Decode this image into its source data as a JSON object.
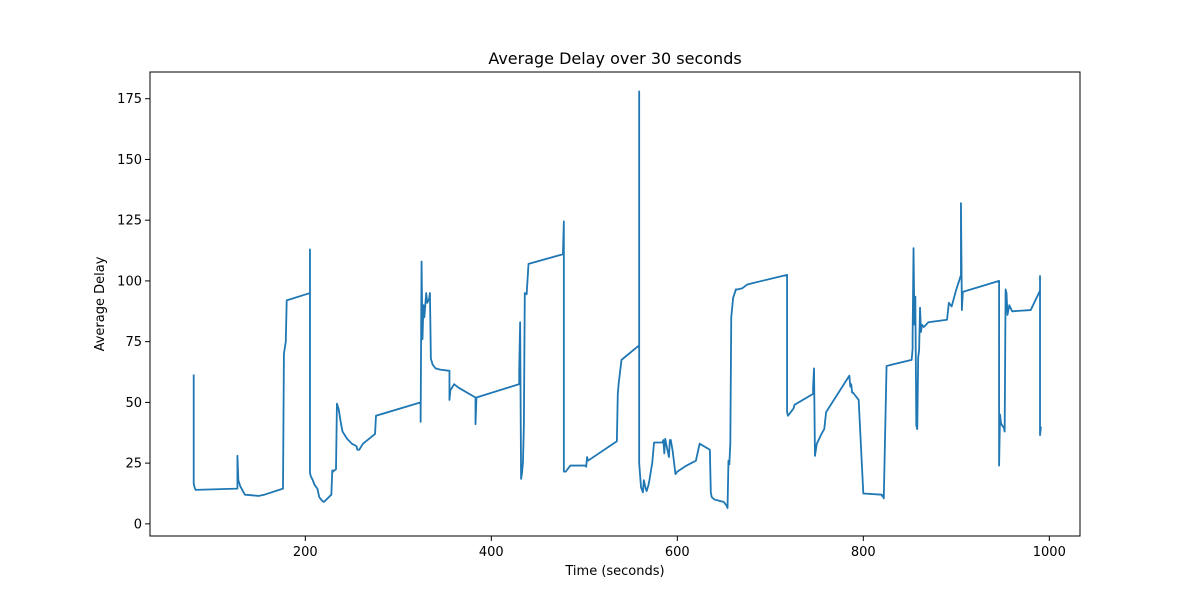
{
  "chart_data": {
    "type": "line",
    "title": "Average Delay over 30 seconds",
    "xlabel": "Time (seconds)",
    "ylabel": "Average Delay",
    "xlim": [
      33,
      1033
    ],
    "ylim": [
      -5,
      186
    ],
    "xticks": [
      200,
      400,
      600,
      800,
      1000
    ],
    "yticks": [
      0,
      25,
      50,
      75,
      100,
      125,
      150,
      175
    ],
    "grid": false,
    "legend": "none",
    "series": [
      {
        "color": "#1f77b4",
        "x": [
          80,
          80,
          81,
          82,
          127,
          127,
          128,
          130,
          135,
          150,
          156,
          176,
          177,
          179,
          180,
          205,
          205,
          205,
          206,
          208,
          210,
          213,
          215,
          218,
          220,
          228,
          229,
          230,
          231,
          233,
          234,
          236,
          238,
          240,
          245,
          250,
          255,
          256,
          258,
          262,
          275,
          276,
          324,
          324,
          325,
          326,
          327,
          328,
          330,
          331,
          333,
          334,
          335,
          337,
          340,
          345,
          355,
          355,
          356,
          360,
          365,
          383,
          383,
          384,
          430,
          430,
          431,
          432,
          433,
          434,
          435,
          436,
          438,
          440,
          477,
          478,
          478,
          478,
          480,
          485,
          500,
          501,
          502,
          503,
          504,
          535,
          536,
          537,
          540,
          559,
          559,
          559,
          560,
          561,
          562,
          563,
          564,
          566,
          567,
          569,
          570,
          573,
          575,
          584,
          585,
          586,
          587,
          588,
          591,
          592,
          593,
          595,
          598,
          600,
          610,
          620,
          624,
          635,
          636,
          637,
          640,
          645,
          650,
          652,
          653,
          654,
          655,
          656,
          656,
          657,
          658,
          660,
          663,
          665,
          670,
          675,
          680,
          718,
          718,
          719,
          725,
          726,
          746,
          746,
          747,
          748,
          750,
          755,
          758,
          760,
          785,
          786,
          787,
          788,
          789,
          790,
          795,
          800,
          820,
          820,
          820,
          821,
          822,
          825,
          852,
          853,
          853,
          854,
          855,
          856,
          856,
          857,
          858,
          859,
          860,
          861,
          862,
          863,
          865,
          870,
          890,
          892,
          895,
          900,
          903,
          905,
          905,
          906,
          907,
          946,
          946,
          947,
          948,
          950,
          951,
          952,
          953,
          954,
          955,
          957,
          960,
          980,
          990,
          990,
          990,
          991
        ],
        "y": [
          61.5,
          16.5,
          15,
          14,
          14.5,
          28,
          18,
          15.5,
          12,
          11.5,
          12,
          14.5,
          70,
          75,
          92,
          95,
          113,
          21,
          19.5,
          18,
          16,
          14.5,
          11,
          9.5,
          9,
          12,
          22,
          21.5,
          22,
          22.5,
          49.5,
          47,
          42,
          38,
          35,
          33,
          32,
          30.5,
          30.5,
          33,
          37,
          44.5,
          50,
          42,
          108,
          76,
          90,
          85,
          95,
          91,
          92.5,
          95,
          68,
          65.5,
          64,
          63.5,
          63,
          51,
          55,
          57.5,
          56,
          52,
          41,
          52,
          57.5,
          63.5,
          83,
          18.5,
          21,
          25,
          40,
          95,
          94.5,
          107,
          111,
          124.5,
          121,
          21.5,
          21.5,
          24,
          24,
          24,
          23.5,
          27.5,
          26,
          34,
          53.5,
          58,
          67.5,
          73.5,
          178,
          25,
          20,
          15,
          14,
          13,
          18,
          14.5,
          13.5,
          16,
          18,
          25,
          33.5,
          33.5,
          34.5,
          29,
          35,
          33,
          27.5,
          34.5,
          34.5,
          30,
          20.5,
          21.5,
          24,
          26,
          33,
          30.5,
          13,
          11,
          10,
          9.5,
          9,
          8,
          7.5,
          6.5,
          26,
          24.5,
          25,
          33,
          85,
          93,
          96.5,
          96.5,
          97,
          98.5,
          99,
          102.5,
          46,
          44.5,
          47.5,
          49,
          53.5,
          56,
          64,
          28,
          33,
          37,
          39,
          46,
          61,
          56.5,
          57.5,
          54,
          54,
          53.5,
          51,
          12.5,
          12,
          12,
          11.5,
          11.5,
          10.5,
          65,
          67.5,
          72,
          77,
          113.5,
          82,
          93.5,
          90,
          40.5,
          39,
          68.5,
          71.5,
          89,
          79,
          82,
          81,
          83,
          84,
          91,
          89.5,
          96.5,
          100,
          102.5,
          132,
          88,
          95.5,
          100,
          24,
          45,
          41.5,
          40,
          40,
          38,
          96.5,
          95,
          86,
          90,
          87.5,
          88,
          96,
          102,
          36.5,
          40
        ]
      }
    ]
  }
}
